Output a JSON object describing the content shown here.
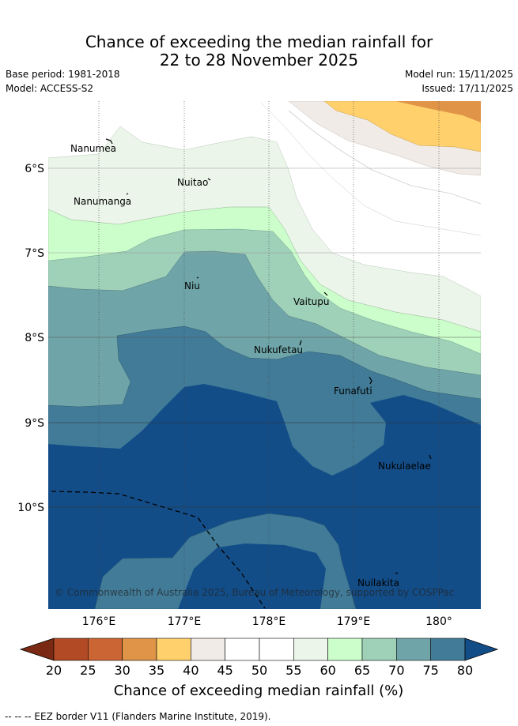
{
  "title": {
    "line1": "Chance of exceeding the median rainfall for",
    "line2": "22 to 28 November 2025"
  },
  "meta": {
    "base_period": "Base period: 1981-2018",
    "model": "Model: ACCESS-S2",
    "model_run": "Model run: 15/11/2025",
    "issued": "Issued: 17/11/2025"
  },
  "map": {
    "lon_ticks": [
      "176°E",
      "177°E",
      "178°E",
      "179°E",
      "180°"
    ],
    "lat_ticks": [
      "6°S",
      "7°S",
      "8°S",
      "9°S",
      "10°S"
    ],
    "copyright": "© Commonwealth of Australia 2025, Bureau of Meteorology, supported by COSPPac",
    "places": [
      {
        "name": "Nanumea"
      },
      {
        "name": "Nuitao"
      },
      {
        "name": "Nanumanga"
      },
      {
        "name": "Niu"
      },
      {
        "name": "Vaitupu"
      },
      {
        "name": "Nukufetau"
      },
      {
        "name": "Funafuti"
      },
      {
        "name": "Nukulaelae"
      },
      {
        "name": "Nuilakita"
      }
    ]
  },
  "colorbar": {
    "ticks": [
      "20",
      "25",
      "30",
      "35",
      "40",
      "45",
      "50",
      "55",
      "60",
      "65",
      "70",
      "75",
      "80"
    ],
    "label": "Chance of exceeding median rainfall (%)",
    "colors": [
      "#7a2a12",
      "#b14a25",
      "#cc6534",
      "#e09448",
      "#ffd06b",
      "#f0ebe6",
      "#ffffff",
      "#ffffff",
      "#ebf5e9",
      "#ccfecc",
      "#9fd0b8",
      "#6fa5a8",
      "#417b98",
      "#134d88"
    ]
  },
  "footer": "--  --  -- EEZ border V11 (Flanders Marine Institute, 2019)."
}
